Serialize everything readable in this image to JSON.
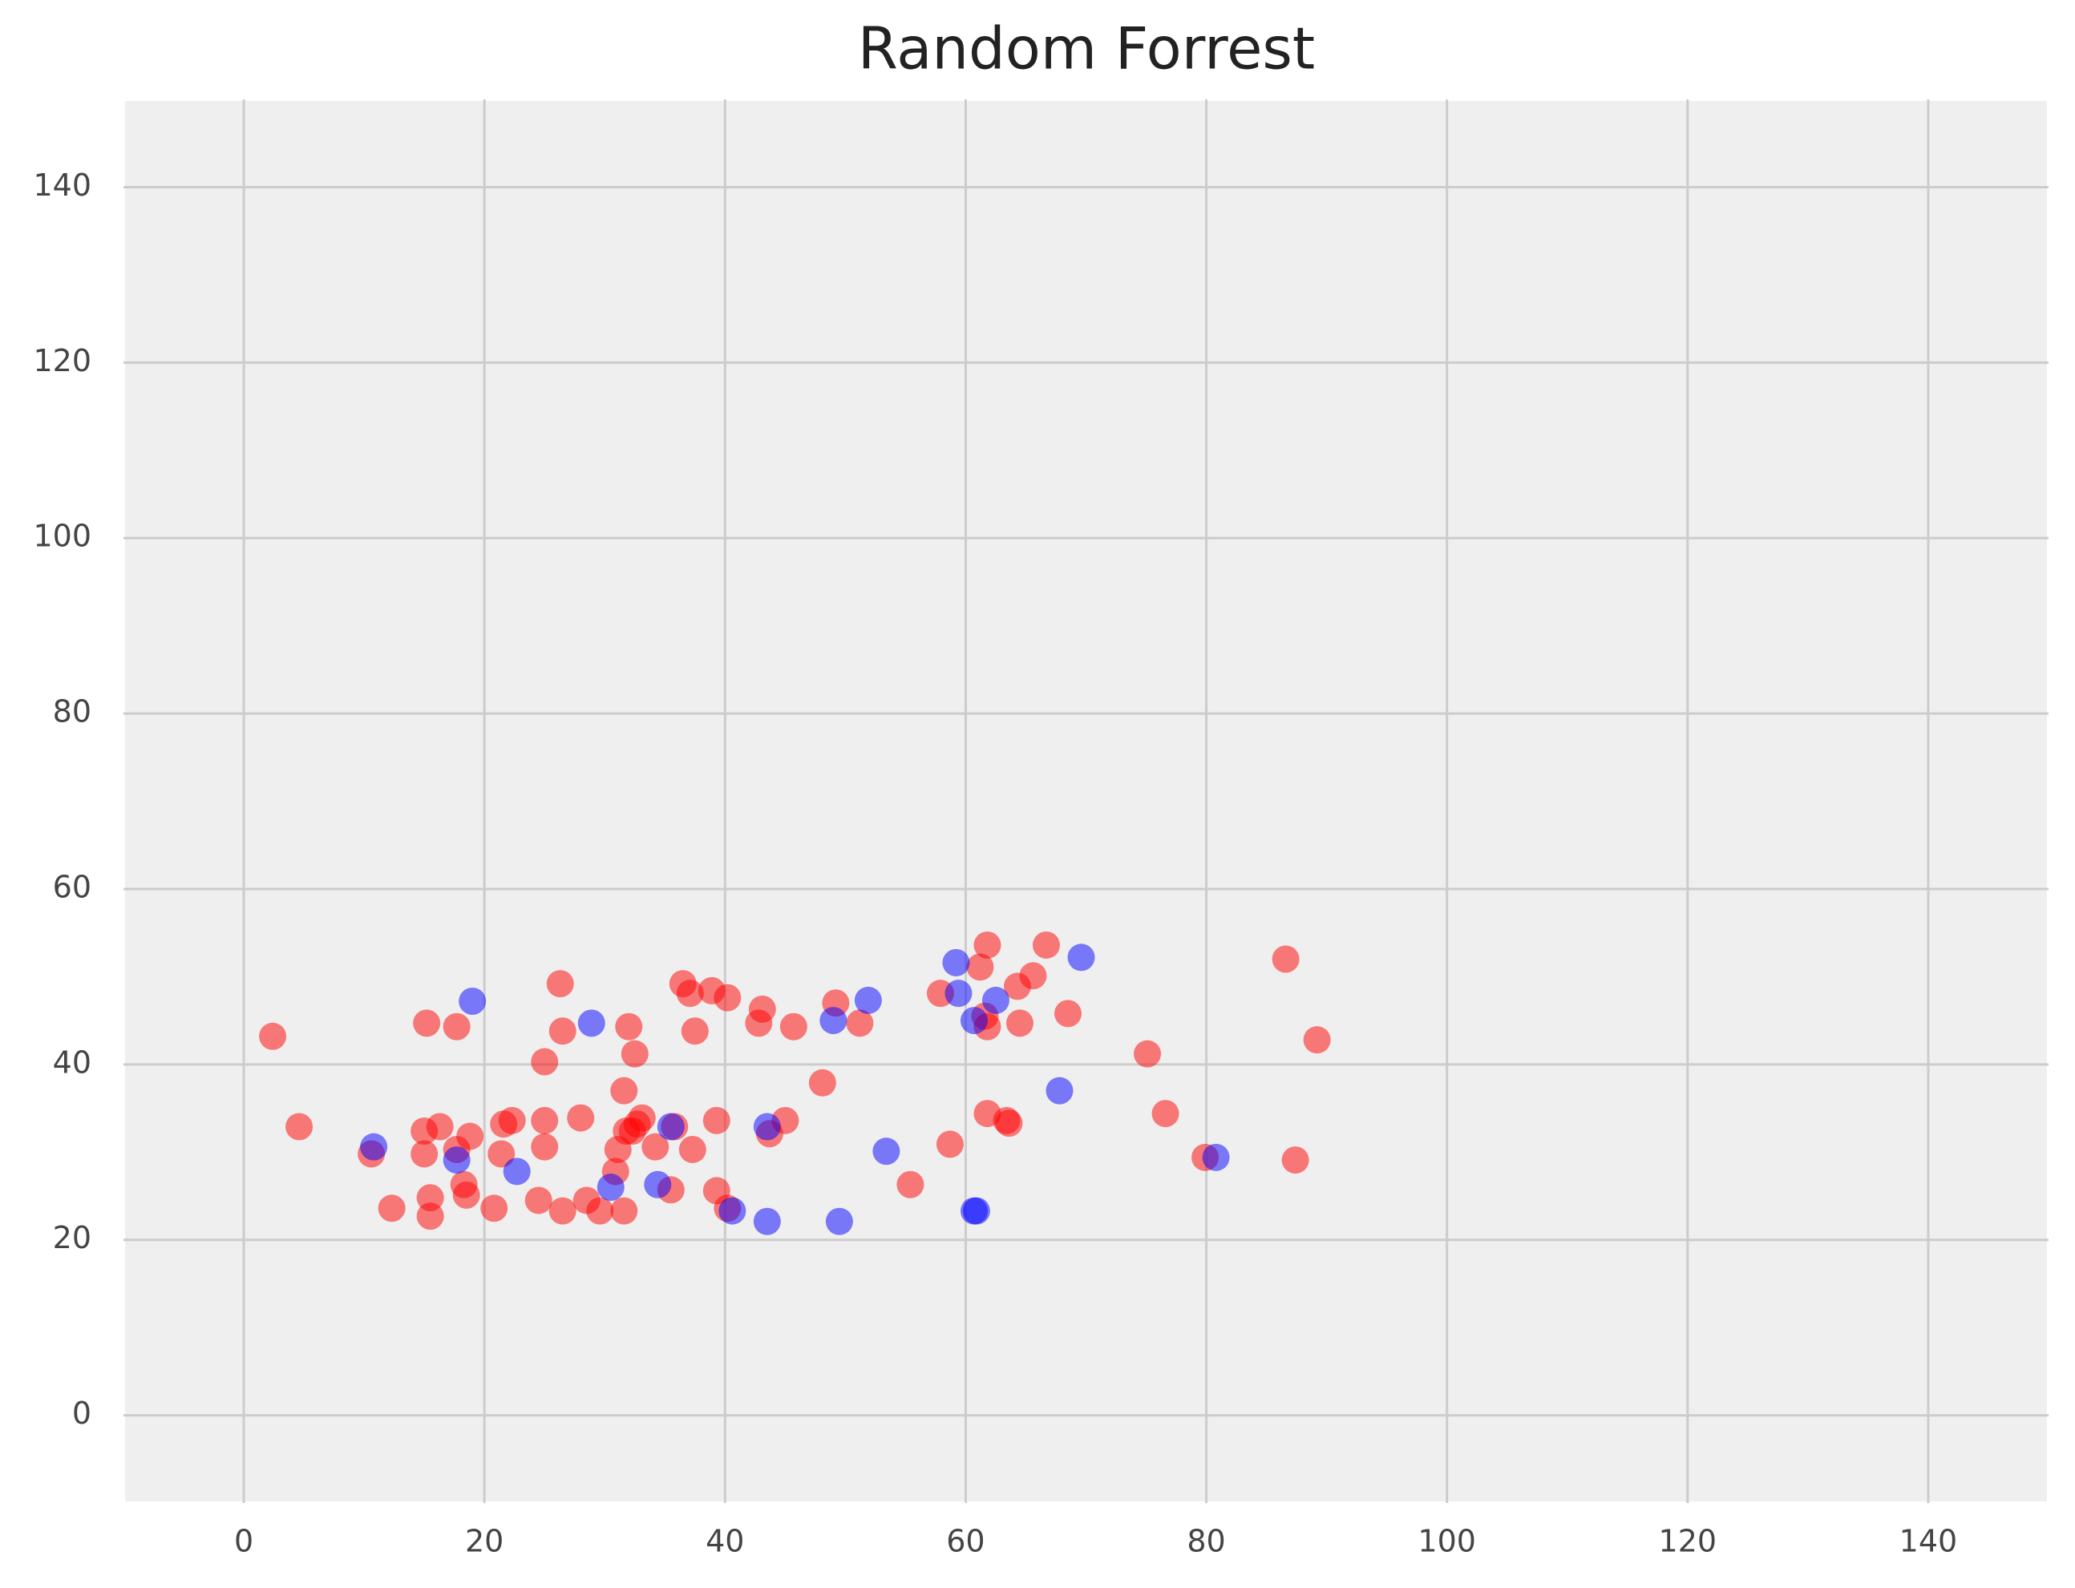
{
  "chart_data": {
    "type": "scatter",
    "title": "Random Forrest",
    "xlim": [
      -10,
      150
    ],
    "ylim": [
      -10,
      150
    ],
    "xticks": [
      0,
      20,
      40,
      60,
      80,
      100,
      120,
      140
    ],
    "yticks": [
      0,
      20,
      40,
      60,
      80,
      100,
      120,
      140
    ],
    "grid": true,
    "alpha": 0.5,
    "series": [
      {
        "color": "#ff0000",
        "x": [
          2.4,
          4.6,
          10.6,
          12.3,
          15.2,
          15.0,
          15.0,
          15.5,
          15.5,
          16.3,
          17.7,
          17.7,
          18.3,
          18.8,
          18.5,
          20.8,
          21.4,
          21.6,
          22.3,
          24.5,
          25.0,
          25.0,
          25.0,
          26.3,
          26.5,
          26.5,
          28.0,
          28.5,
          29.6,
          31.6,
          32.0,
          32.5,
          31.1,
          30.9,
          31.6,
          31.8,
          32.7,
          33.1,
          32.3,
          34.2,
          35.5,
          35.8,
          36.5,
          37.1,
          37.5,
          37.3,
          38.9,
          39.3,
          39.3,
          40.2,
          40.2,
          43.1,
          42.8,
          43.7,
          45.0,
          45.7,
          48.1,
          49.2,
          51.2,
          55.4,
          57.9,
          58.7,
          61.2,
          61.8,
          61.6,
          61.8,
          63.4,
          63.6,
          61.8,
          64.3,
          64.5,
          65.6,
          66.7,
          68.5,
          75.1,
          76.6,
          79.9,
          86.6,
          87.4,
          89.2
        ],
        "values": [
          43.2,
          32.9,
          29.8,
          23.6,
          44.7,
          32.4,
          29.8,
          24.8,
          22.7,
          32.9,
          44.3,
          30.3,
          26.3,
          31.8,
          25.1,
          23.6,
          29.8,
          33.2,
          33.6,
          24.5,
          40.3,
          33.6,
          30.6,
          49.2,
          43.8,
          23.3,
          33.9,
          24.5,
          23.3,
          37.0,
          44.3,
          41.2,
          30.3,
          27.8,
          23.3,
          32.4,
          33.2,
          33.9,
          32.4,
          30.6,
          25.7,
          32.9,
          49.2,
          48.1,
          43.8,
          30.3,
          48.4,
          33.6,
          25.6,
          47.6,
          23.6,
          46.3,
          44.7,
          32.1,
          33.6,
          44.3,
          37.9,
          47.0,
          44.7,
          26.3,
          48.1,
          30.9,
          51.1,
          53.6,
          45.5,
          34.4,
          33.6,
          33.3,
          44.3,
          48.9,
          44.7,
          50.1,
          53.6,
          45.8,
          41.2,
          34.4,
          29.4,
          52.0,
          29.1,
          42.8
        ]
      },
      {
        "color": "#0000ff",
        "x": [
          10.8,
          17.7,
          19.0,
          22.7,
          28.9,
          30.5,
          34.4,
          35.5,
          40.6,
          43.5,
          43.5,
          49.0,
          49.5,
          51.9,
          53.4,
          59.2,
          59.4,
          60.7,
          60.7,
          60.9,
          62.5,
          67.8,
          69.6,
          80.8
        ],
        "values": [
          30.6,
          29.1,
          47.2,
          27.8,
          44.7,
          26.0,
          26.3,
          32.9,
          23.3,
          32.9,
          22.1,
          45.0,
          22.1,
          47.3,
          30.1,
          51.6,
          48.1,
          45.0,
          23.3,
          23.3,
          47.3,
          37.0,
          52.2,
          29.4
        ]
      }
    ]
  }
}
